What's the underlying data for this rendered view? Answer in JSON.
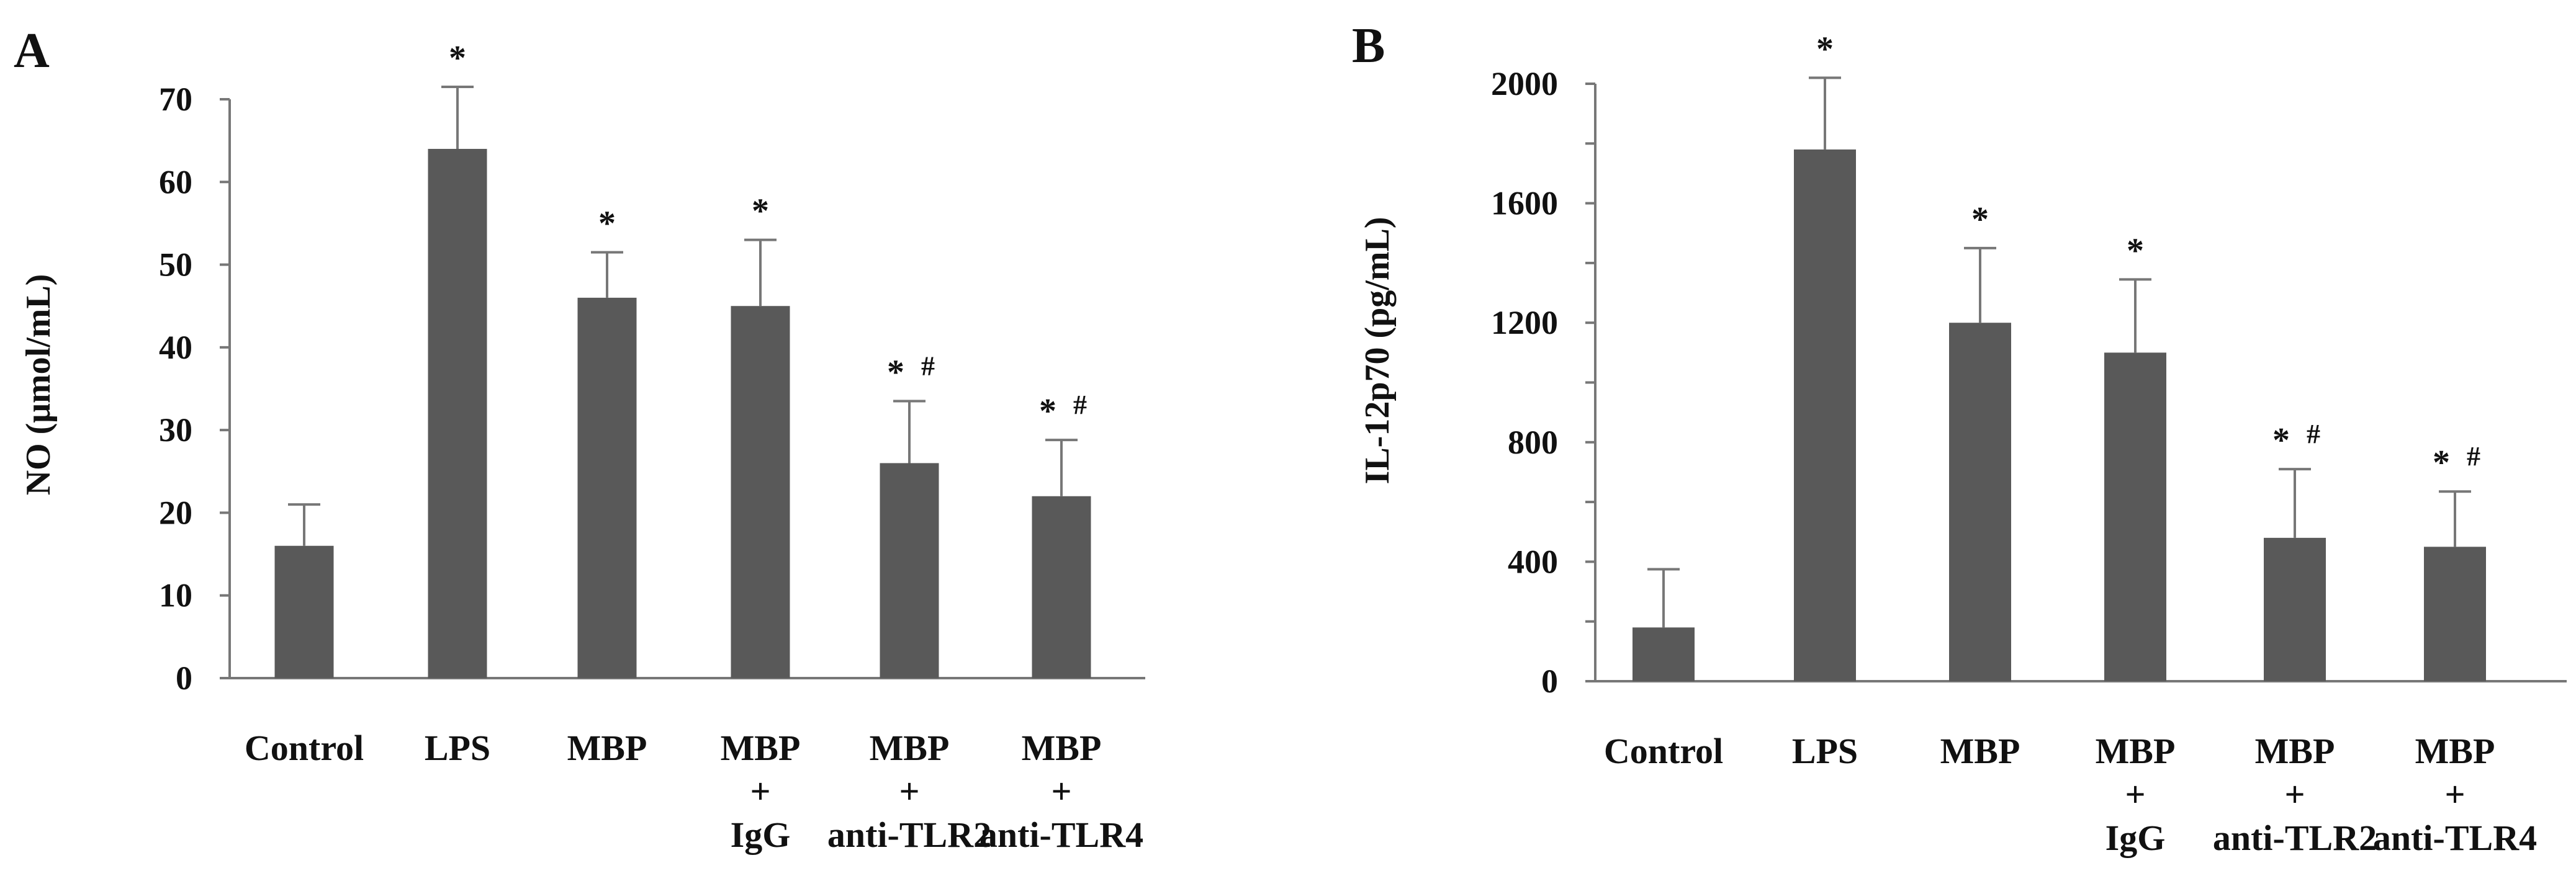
{
  "chart_data": [
    {
      "type": "bar",
      "panel": "A",
      "ylabel": "NO (μmol/mL)",
      "xlabel": "",
      "ylim": [
        0,
        70
      ],
      "yticks": [
        "0",
        "10",
        "20",
        "30",
        "40",
        "50",
        "60",
        "70"
      ],
      "ytick_values": [
        0,
        10,
        20,
        30,
        40,
        50,
        60,
        70
      ],
      "categories": [
        [
          "Control"
        ],
        [
          "LPS"
        ],
        [
          "MBP"
        ],
        [
          "MBP",
          "+",
          "IgG"
        ],
        [
          "MBP",
          "+",
          "anti-TLR2"
        ],
        [
          "MBP",
          "+",
          "anti-TLR4"
        ]
      ],
      "values": [
        16,
        64,
        46,
        45,
        26,
        22
      ],
      "errors": [
        5,
        7.5,
        5.5,
        8,
        7.5,
        6.8
      ],
      "significance": [
        "",
        "*",
        "*",
        "*",
        "*",
        "*"
      ],
      "hash": [
        "",
        "",
        "",
        "",
        "#",
        "#"
      ],
      "bar_color": "#595959"
    },
    {
      "type": "bar",
      "panel": "B",
      "ylabel": "IL-12p70 (pg/mL)",
      "xlabel": "",
      "ylim": [
        0,
        2000
      ],
      "yticks": [
        "0",
        "400",
        "800",
        "1200",
        "1600",
        "2000"
      ],
      "ytick_values": [
        0,
        400,
        800,
        1200,
        1600,
        2000
      ],
      "minor_ticks": true,
      "categories": [
        [
          "Control"
        ],
        [
          "LPS"
        ],
        [
          "MBP"
        ],
        [
          "MBP",
          "+",
          "IgG"
        ],
        [
          "MBP",
          "+",
          "anti-TLR2"
        ],
        [
          "MBP",
          "+",
          "anti-TLR4"
        ]
      ],
      "values": [
        180,
        1780,
        1200,
        1100,
        480,
        450
      ],
      "errors": [
        195,
        240,
        250,
        245,
        230,
        185
      ],
      "significance": [
        "",
        "*",
        "*",
        "*",
        "*",
        "*"
      ],
      "hash": [
        "",
        "",
        "",
        "",
        "#",
        "#"
      ],
      "bar_color": "#595959"
    }
  ]
}
